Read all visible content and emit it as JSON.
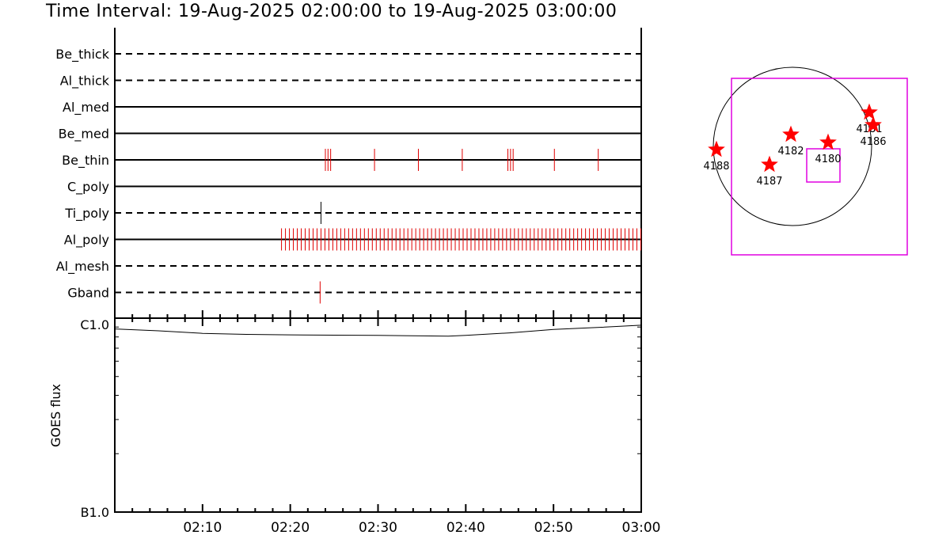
{
  "title": "Time Interval: 19-Aug-2025 02:00:00 to 19-Aug-2025 03:00:00",
  "colors": {
    "event": "#e00000",
    "box": "#e000e0",
    "star": "#ff0000",
    "axis": "#000000"
  },
  "chart_data": [
    {
      "type": "event-timeline",
      "x_range_minutes": [
        0,
        60
      ],
      "channels": [
        {
          "name": "Be_thick",
          "style": "dashed",
          "events": []
        },
        {
          "name": "Al_thick",
          "style": "dashed",
          "events": []
        },
        {
          "name": "Al_med",
          "style": "solid",
          "events": []
        },
        {
          "name": "Be_med",
          "style": "solid",
          "events": []
        },
        {
          "name": "Be_thin",
          "style": "solid",
          "events": [
            24.0,
            24.3,
            24.6,
            29.6,
            34.6,
            39.6,
            44.8,
            45.1,
            45.4,
            50.1,
            55.1
          ]
        },
        {
          "name": "C_poly",
          "style": "solid",
          "events": []
        },
        {
          "name": "Ti_poly",
          "style": "dashed",
          "events": [
            23.5
          ],
          "event_color": "black"
        },
        {
          "name": "Al_poly",
          "style": "solid",
          "dense_range": [
            19.0,
            60.0
          ],
          "dense_step": 0.45,
          "events": []
        },
        {
          "name": "Al_mesh",
          "style": "dashed",
          "events": []
        },
        {
          "name": "Gband",
          "style": "dashed",
          "events": [
            23.4
          ]
        }
      ]
    },
    {
      "type": "line",
      "ylabel": "GOES flux",
      "ytick_labels": [
        "C1.0",
        "B1.0"
      ],
      "y_scale": "log",
      "ylim": [
        1e-07,
        1e-06
      ],
      "x_tick_labels": [
        "02:10",
        "02:20",
        "02:30",
        "02:40",
        "02:50",
        "03:00"
      ],
      "x_tick_minutes": [
        10,
        20,
        30,
        40,
        50,
        60
      ],
      "x": [
        0,
        5,
        10,
        15,
        20,
        25,
        30,
        35,
        38,
        40,
        45,
        50,
        55,
        60
      ],
      "y": [
        8.8e-07,
        8.6e-07,
        8.35e-07,
        8.25e-07,
        8.2e-07,
        8.17e-07,
        8.15e-07,
        8.1e-07,
        8.08e-07,
        8.15e-07,
        8.4e-07,
        8.75e-07,
        8.95e-07,
        9.2e-07
      ]
    },
    {
      "type": "scatter",
      "description": "solar disk locator",
      "active_regions": [
        {
          "label": "4188",
          "x": -0.96,
          "y": -0.04
        },
        {
          "label": "4187",
          "x": -0.29,
          "y": -0.23
        },
        {
          "label": "4182",
          "x": -0.02,
          "y": 0.15
        },
        {
          "label": "4180",
          "x": 0.45,
          "y": 0.05
        },
        {
          "label": "4181",
          "x": 0.97,
          "y": 0.43
        },
        {
          "label": "4186",
          "x": 1.02,
          "y": 0.27
        }
      ]
    }
  ]
}
